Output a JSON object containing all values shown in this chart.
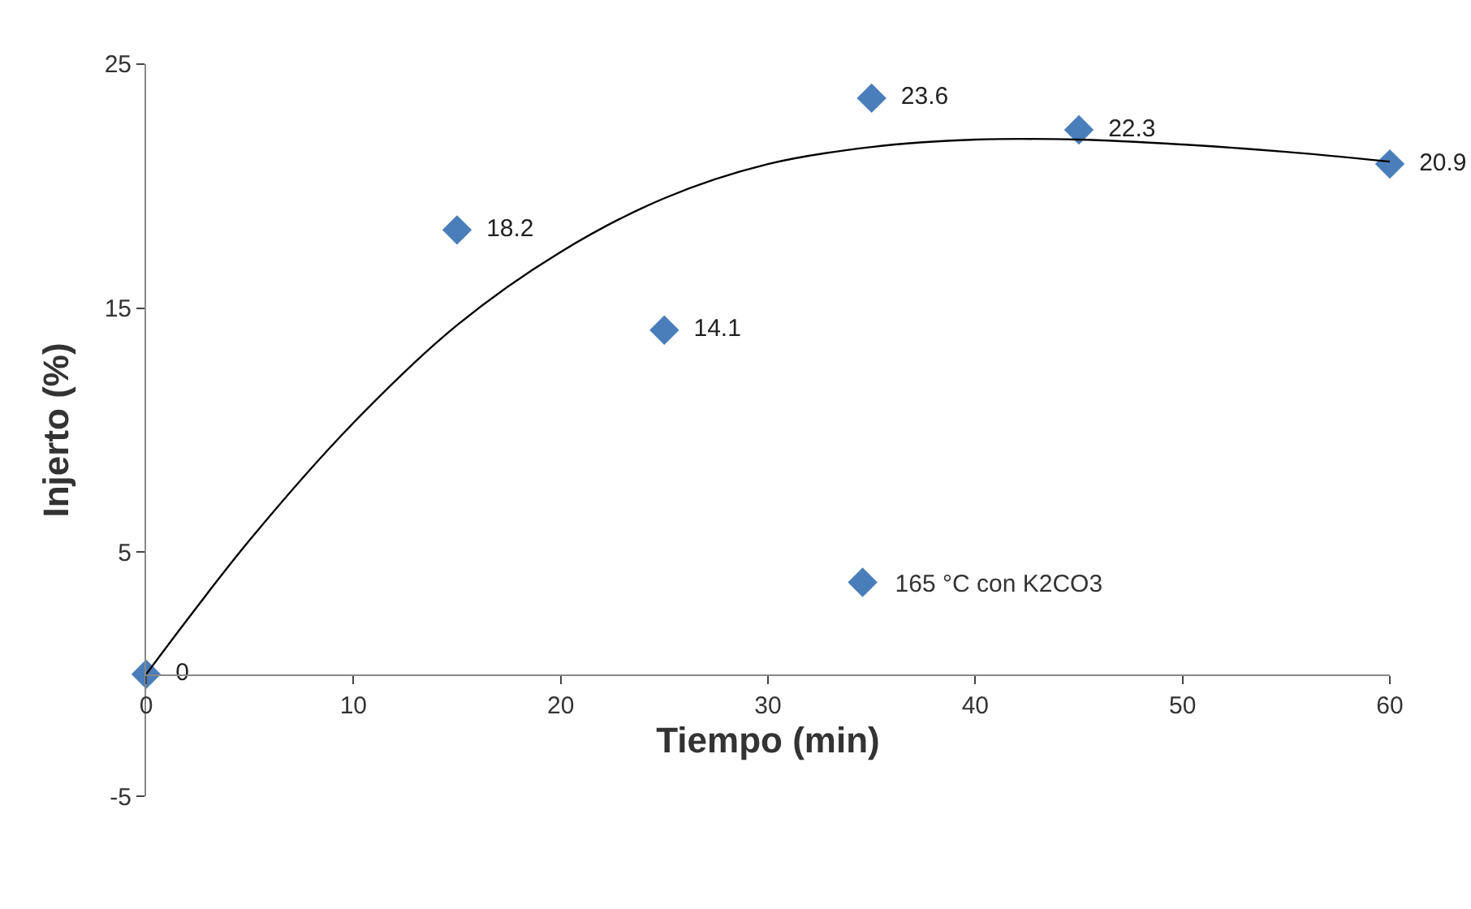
{
  "chart_data": {
    "type": "scatter",
    "xlabel": "Tiempo (min)",
    "ylabel": "Injerto (%)",
    "x": [
      0,
      15,
      25,
      35,
      45,
      60
    ],
    "series": [
      {
        "name": "165 °C con K2CO3",
        "color": "#4a7ebb",
        "values": [
          0,
          18.2,
          14.1,
          23.6,
          22.3,
          20.9
        ],
        "value_labels": [
          "0",
          "18.2",
          "14.1",
          "23.6",
          "22.3",
          "20.9"
        ]
      },
      {
        "type": "line",
        "marker": "none",
        "color": "#000000",
        "x": [
          0,
          5,
          10,
          15,
          20,
          25,
          30,
          35,
          40,
          45,
          50,
          55,
          60
        ],
        "values": [
          0,
          5.5,
          10.3,
          14.3,
          17.3,
          19.5,
          20.9,
          21.6,
          21.9,
          21.9,
          21.7,
          21.4,
          21.0
        ]
      }
    ],
    "marker": "diamond",
    "legend": "right",
    "xlim": [
      0,
      60
    ],
    "xticks": [
      0,
      10,
      20,
      30,
      40,
      50,
      60
    ],
    "ylim": [
      -5,
      25
    ],
    "yticks": [
      -5,
      5,
      15,
      25
    ]
  }
}
